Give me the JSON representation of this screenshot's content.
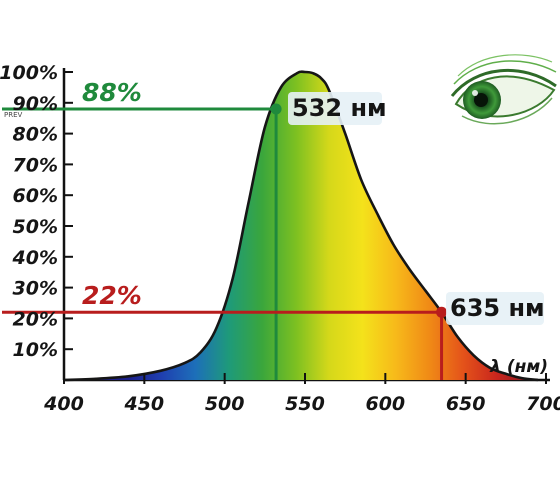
{
  "chart_data": {
    "type": "area",
    "x_unit_label": "λ (нм)",
    "xlim": [
      400,
      700
    ],
    "ylim": [
      0,
      100
    ],
    "x_ticks": [
      400,
      450,
      500,
      550,
      600,
      650,
      700
    ],
    "y_tick_labels": [
      "10%",
      "20%",
      "30%",
      "40%",
      "50%",
      "60%",
      "70%",
      "80%",
      "90%",
      "100%"
    ],
    "y_tick_values": [
      10,
      20,
      30,
      40,
      50,
      60,
      70,
      80,
      90,
      100
    ],
    "curve": {
      "x": [
        400,
        420,
        440,
        460,
        475,
        485,
        495,
        505,
        515,
        525,
        535,
        545,
        550,
        555,
        560,
        565,
        575,
        585,
        595,
        605,
        615,
        625,
        635,
        645,
        655,
        665,
        675,
        685,
        695
      ],
      "y": [
        0,
        0.4,
        1.2,
        3,
        5.5,
        9,
        17,
        33,
        58,
        82,
        95,
        99.6,
        100,
        99.6,
        98,
        94,
        80,
        65,
        54,
        44,
        36,
        29,
        22,
        14,
        8,
        4,
        2,
        0.6,
        0
      ]
    },
    "markers": [
      {
        "x": 532,
        "y": 88,
        "pct_label": "88%",
        "nm_label": "532 нм",
        "color": "#1f8a3c"
      },
      {
        "x": 635,
        "y": 22,
        "pct_label": "22%",
        "nm_label": "635 нм",
        "color": "#b81d1d"
      }
    ],
    "spectrum_colors": [
      "#1c1f8c",
      "#1f3fb0",
      "#1d6fb9",
      "#1e9a7a",
      "#3aa63c",
      "#7cc021",
      "#d5d81a",
      "#f4e21b",
      "#f7b91a",
      "#f08a16",
      "#e4531a",
      "#c9261d",
      "#8f1a22"
    ]
  },
  "overlay": {
    "prev_label": "PREV",
    "eye_icon": "eye-icon"
  }
}
